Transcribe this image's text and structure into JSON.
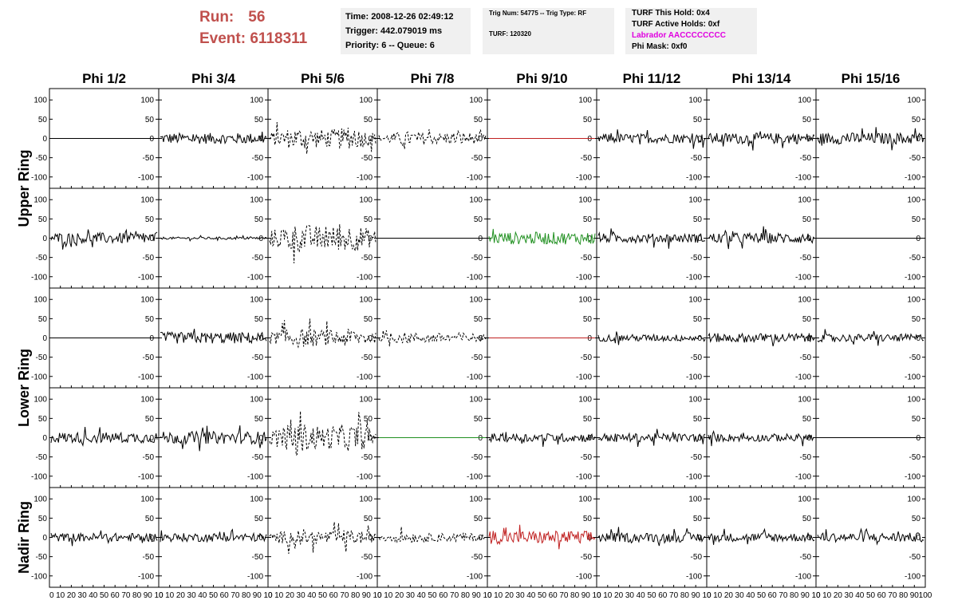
{
  "header": {
    "run_label": "Run:",
    "run_value": "56",
    "event_label": "Event:",
    "event_value": "6118311",
    "info1": [
      "Time: 2008-12-26 02:49:12",
      "Trigger: 442.079019 ms",
      "Priority: 6 -- Queue: 6"
    ],
    "info2_line1": "Trig Num: 54775 -- Trig Type: RF",
    "info2_line2": "TURF: 120320",
    "info3_hold": "TURF This Hold: 0x4",
    "info3_active": "TURF Active Holds: 0xf",
    "info3_labrador": "Labrador AACCCCCCCC",
    "info3_mask": "Phi Mask: 0xf0"
  },
  "colors": {
    "run_text": "#c0504d",
    "labrador": "#e000e0",
    "red": "#c02020",
    "green": "#209020",
    "panel_bg": "#f0f0f0"
  },
  "chart_data": {
    "type": "line",
    "columns": [
      "Phi 1/2",
      "Phi 3/4",
      "Phi 5/6",
      "Phi 7/8",
      "Phi 9/10",
      "Phi 11/12",
      "Phi 13/14",
      "Phi 15/16"
    ],
    "ring_labels": [
      {
        "label": "Upper Ring",
        "rows": [
          0,
          1
        ]
      },
      {
        "label": "Lower Ring",
        "rows": [
          2,
          3
        ]
      },
      {
        "label": "Nadir Ring",
        "rows": [
          4
        ]
      }
    ],
    "xlim": [
      0,
      100
    ],
    "ylim": [
      -115,
      115
    ],
    "yticks": [
      -100,
      -50,
      0,
      50,
      100
    ],
    "xticks_bottom": [
      [
        "0",
        "10",
        "20",
        "30",
        "40",
        "50",
        "60",
        "70",
        "80",
        "90",
        "10"
      ],
      [
        "0",
        "10",
        "20",
        "30",
        "40",
        "50",
        "60",
        "70",
        "80",
        "90",
        "10"
      ],
      [
        "0",
        "10",
        "20",
        "30",
        "40",
        "50",
        "60",
        "70",
        "80",
        "90",
        "10"
      ],
      [
        "0",
        "10",
        "20",
        "30",
        "40",
        "50",
        "60",
        "70",
        "80",
        "90",
        "10"
      ],
      [
        "0",
        "10",
        "20",
        "30",
        "40",
        "50",
        "60",
        "70",
        "80",
        "90",
        "10"
      ],
      [
        "0",
        "10",
        "20",
        "30",
        "40",
        "50",
        "60",
        "70",
        "80",
        "90",
        "10"
      ],
      [
        "0",
        "10",
        "20",
        "30",
        "40",
        "50",
        "60",
        "70",
        "80",
        "90",
        "10"
      ],
      [
        "0",
        "10",
        "20",
        "30",
        "40",
        "50",
        "60",
        "70",
        "80",
        "90",
        "100"
      ]
    ],
    "panels": [
      [
        {
          "kind": "flat",
          "color": "black",
          "amp": 0
        },
        {
          "kind": "noise",
          "color": "black",
          "amp": 14
        },
        {
          "kind": "noise",
          "color": "black",
          "amp": 35,
          "dashed": true
        },
        {
          "kind": "noise",
          "color": "black",
          "amp": 22,
          "dashed": true
        },
        {
          "kind": "flat",
          "color": "red",
          "amp": 0
        },
        {
          "kind": "noise",
          "color": "black",
          "amp": 12
        },
        {
          "kind": "noise",
          "color": "black",
          "amp": 14
        },
        {
          "kind": "noise",
          "color": "black",
          "amp": 15
        }
      ],
      [
        {
          "kind": "noise",
          "color": "black",
          "amp": 14
        },
        {
          "kind": "noise",
          "color": "black",
          "amp": 3
        },
        {
          "kind": "noise",
          "color": "black",
          "amp": 45,
          "dashed": true
        },
        {
          "kind": "flat",
          "color": "black",
          "amp": 0
        },
        {
          "kind": "noise",
          "color": "green",
          "amp": 16
        },
        {
          "kind": "noise",
          "color": "black",
          "amp": 12
        },
        {
          "kind": "noise",
          "color": "black",
          "amp": 14
        },
        {
          "kind": "flat",
          "color": "black",
          "amp": 0
        }
      ],
      [
        {
          "kind": "flat",
          "color": "black",
          "amp": 0
        },
        {
          "kind": "noise",
          "color": "black",
          "amp": 15
        },
        {
          "kind": "noise",
          "color": "black",
          "amp": 30,
          "dashed": true
        },
        {
          "kind": "noise",
          "color": "black",
          "amp": 18,
          "dashed": true
        },
        {
          "kind": "flat",
          "color": "red",
          "amp": 0
        },
        {
          "kind": "noise",
          "color": "black",
          "amp": 9
        },
        {
          "kind": "noise",
          "color": "black",
          "amp": 12
        },
        {
          "kind": "noise",
          "color": "black",
          "amp": 10
        }
      ],
      [
        {
          "kind": "noise",
          "color": "black",
          "amp": 14
        },
        {
          "kind": "noise",
          "color": "black",
          "amp": 16
        },
        {
          "kind": "noise",
          "color": "black",
          "amp": 45,
          "dashed": true
        },
        {
          "kind": "flat",
          "color": "green",
          "amp": 0
        },
        {
          "kind": "noise",
          "color": "black",
          "amp": 11
        },
        {
          "kind": "noise",
          "color": "black",
          "amp": 11
        },
        {
          "kind": "noise",
          "color": "black",
          "amp": 10
        },
        {
          "kind": "flat",
          "color": "black",
          "amp": 0
        }
      ],
      [
        {
          "kind": "noise",
          "color": "black",
          "amp": 11
        },
        {
          "kind": "noise",
          "color": "black",
          "amp": 11
        },
        {
          "kind": "noise",
          "color": "black",
          "amp": 25,
          "dashed": true
        },
        {
          "kind": "noise",
          "color": "black",
          "amp": 16,
          "dashed": true
        },
        {
          "kind": "noise",
          "color": "red",
          "amp": 17
        },
        {
          "kind": "noise",
          "color": "black",
          "amp": 12
        },
        {
          "kind": "noise",
          "color": "black",
          "amp": 11
        },
        {
          "kind": "noise",
          "color": "black",
          "amp": 12
        }
      ]
    ]
  }
}
